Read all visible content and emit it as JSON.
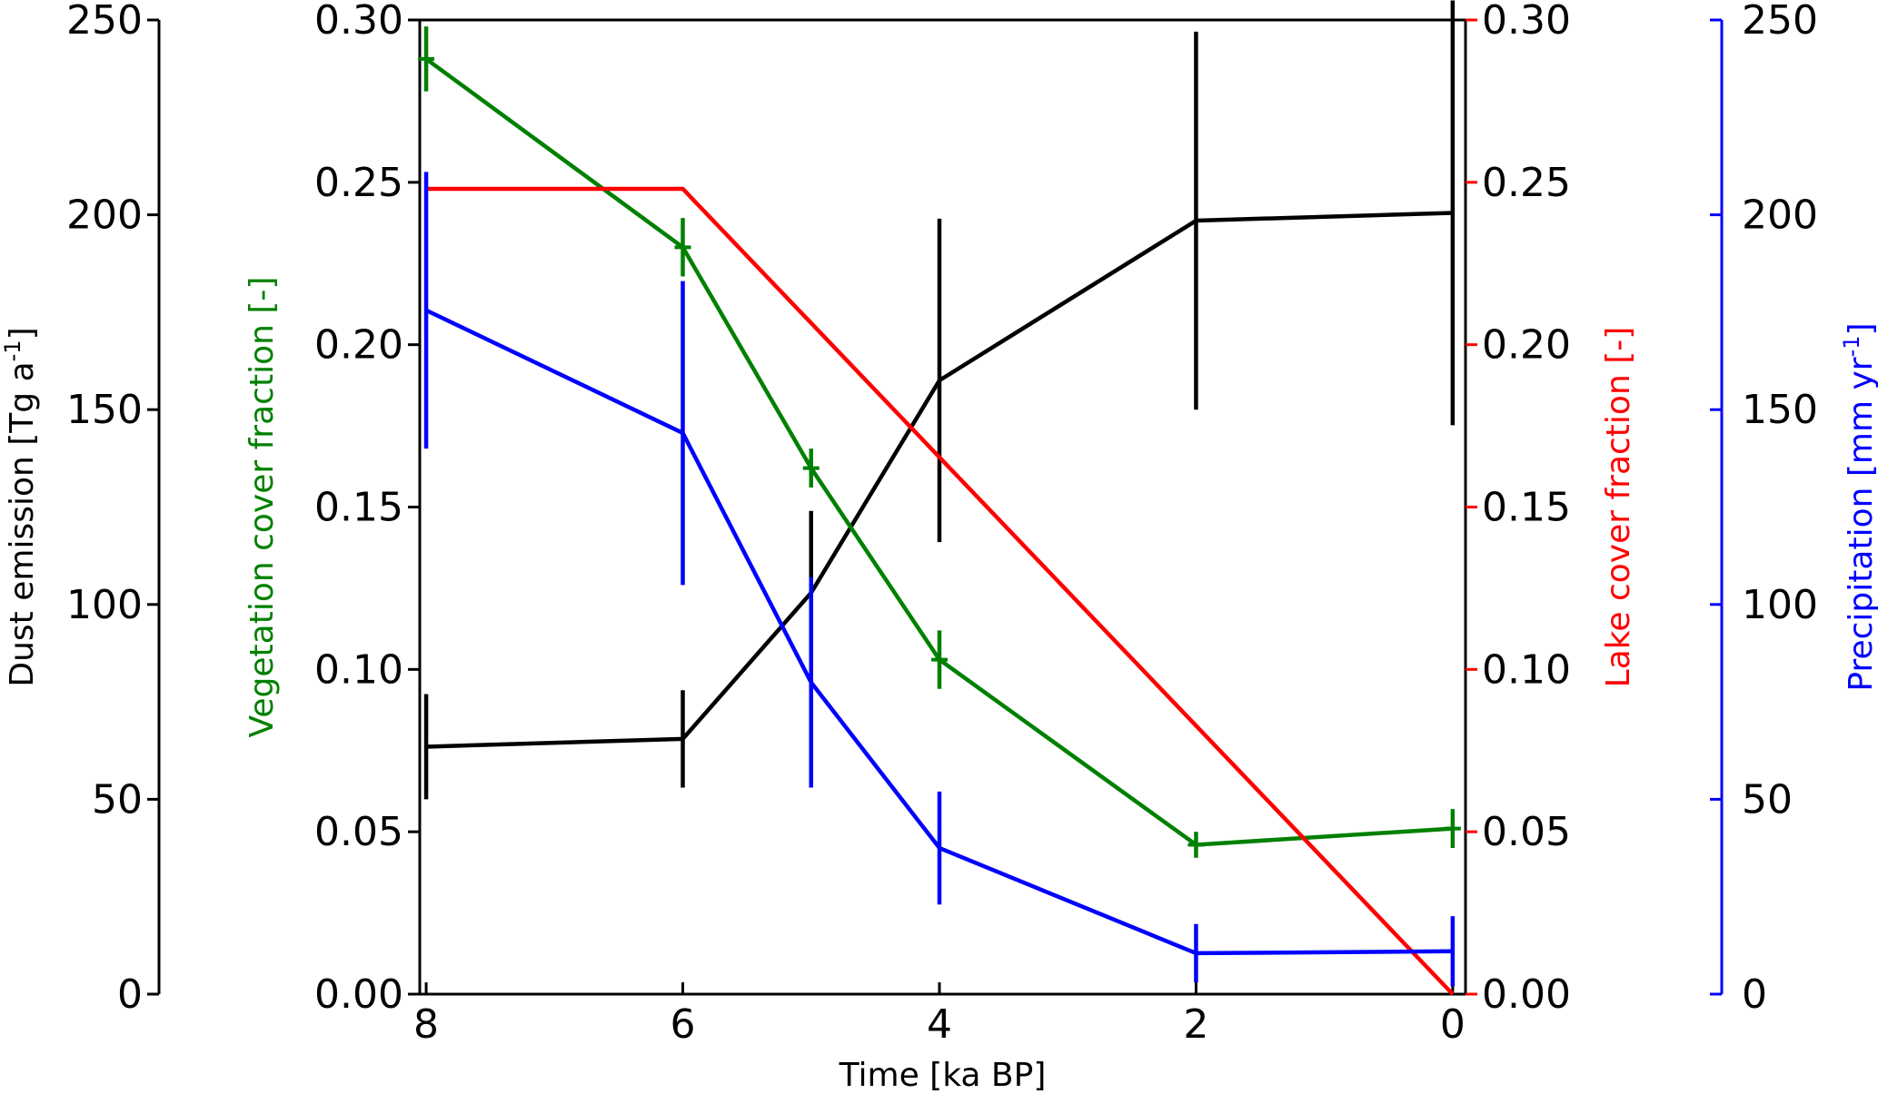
{
  "chart_data": {
    "type": "line",
    "xlabel": "Time [ka BP]",
    "x_ticks": [
      8,
      6,
      4,
      2,
      0
    ],
    "xlim": [
      8.05,
      -0.1
    ],
    "axes": [
      {
        "id": "dust",
        "label_main": "Dust emission [Tg a",
        "label_sup": "-1",
        "label_end": "]",
        "ylim": [
          0,
          250
        ],
        "ticks": [
          0,
          50,
          100,
          150,
          200,
          250
        ],
        "color": "#000000",
        "tick_color": "#000000"
      },
      {
        "id": "veg",
        "label_main": "Vegetation cover fraction [-]",
        "ylim": [
          0,
          0.3
        ],
        "ticks": [
          "0.00",
          "0.05",
          "0.10",
          "0.15",
          "0.20",
          "0.25",
          "0.30"
        ],
        "color": "#008000",
        "tick_color": "#000000"
      },
      {
        "id": "lake",
        "label_main": "Lake cover fraction [-]",
        "ylim": [
          0,
          0.3
        ],
        "ticks": [
          "0.00",
          "0.05",
          "0.10",
          "0.15",
          "0.20",
          "0.25",
          "0.30"
        ],
        "color": "#ff0000",
        "tick_color": "#ff0000"
      },
      {
        "id": "precip",
        "label_main": "Precipitation [mm yr",
        "label_sup": "-1",
        "label_end": "]",
        "ylim": [
          0,
          250
        ],
        "ticks": [
          0,
          50,
          100,
          150,
          200,
          250
        ],
        "color": "#0000ff",
        "tick_color": "#0000ff"
      }
    ],
    "series": [
      {
        "axis": "dust",
        "color": "#000000",
        "points": [
          {
            "x": 8,
            "y": 63.5,
            "err": 13.5
          },
          {
            "x": 6,
            "y": 65.5,
            "err": 12.5
          },
          {
            "x": 5,
            "y": 103,
            "err": 21
          },
          {
            "x": 4,
            "y": 157.5,
            "err": 41.5
          },
          {
            "x": 2,
            "y": 198.5,
            "err": 48.5
          },
          {
            "x": 0,
            "y": 200.5,
            "err": 54.5
          }
        ]
      },
      {
        "axis": "veg",
        "color": "#008000",
        "points": [
          {
            "x": 8,
            "y": 0.288,
            "err": 0.01
          },
          {
            "x": 6,
            "y": 0.23,
            "err": 0.009
          },
          {
            "x": 5,
            "y": 0.162,
            "err": 0.006
          },
          {
            "x": 4,
            "y": 0.103,
            "err": 0.009
          },
          {
            "x": 2,
            "y": 0.046,
            "err": 0.004
          },
          {
            "x": 0,
            "y": 0.051,
            "err": 0.006
          }
        ]
      },
      {
        "axis": "lake",
        "color": "#ff0000",
        "points": [
          {
            "x": 8,
            "y": 0.248
          },
          {
            "x": 6,
            "y": 0.248
          },
          {
            "x": 0,
            "y": 0.0
          }
        ]
      },
      {
        "axis": "precip",
        "color": "#0000ff",
        "points": [
          {
            "x": 8,
            "y": 175.5,
            "err": 35.5
          },
          {
            "x": 6,
            "y": 144,
            "err": 39
          },
          {
            "x": 5,
            "y": 80,
            "err": 27
          },
          {
            "x": 4,
            "y": 37.5,
            "err": 14.5
          },
          {
            "x": 2,
            "y": 10.5,
            "err": 7.5
          },
          {
            "x": 0,
            "y": 11,
            "err": 9
          }
        ]
      }
    ]
  }
}
